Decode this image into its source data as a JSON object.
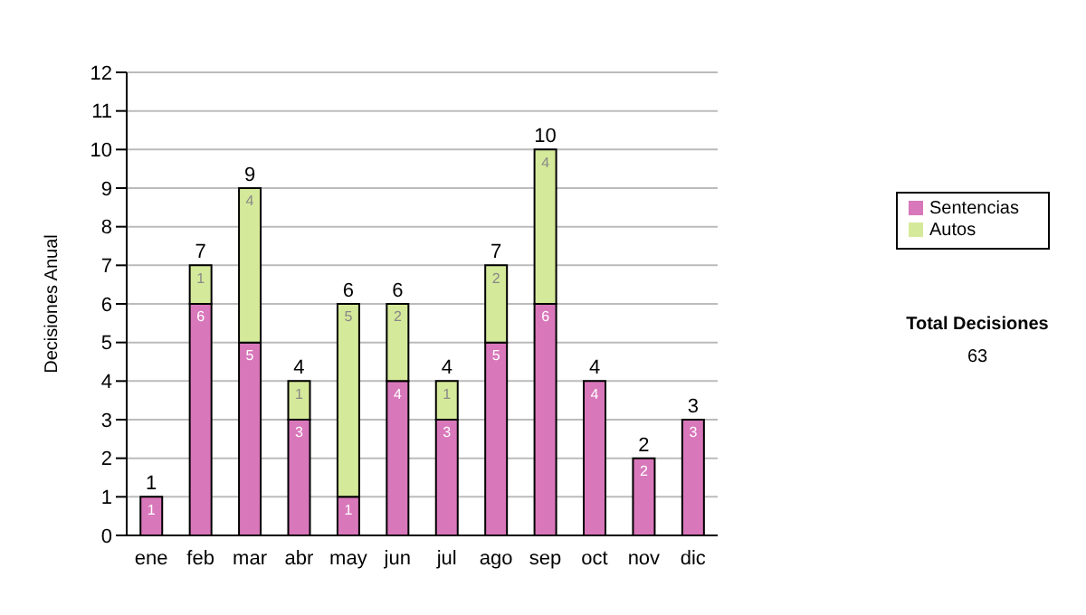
{
  "chart_data": {
    "type": "bar",
    "stacked": true,
    "ylabel": "Decisiones Anual",
    "categories": [
      "ene",
      "feb",
      "mar",
      "abr",
      "may",
      "jun",
      "jul",
      "ago",
      "sep",
      "oct",
      "nov",
      "dic"
    ],
    "series": [
      {
        "name": "Sentencias",
        "color": "#d977bb",
        "values": [
          1,
          6,
          5,
          3,
          1,
          4,
          3,
          5,
          6,
          4,
          2,
          3
        ]
      },
      {
        "name": "Autos",
        "color": "#d5e99a",
        "values": [
          null,
          1,
          4,
          1,
          5,
          2,
          1,
          2,
          4,
          null,
          null,
          null
        ]
      }
    ],
    "totals": [
      "1",
      "7",
      "9",
      "4",
      "6",
      "6",
      "4",
      "7",
      "10",
      "4",
      "2",
      "3"
    ],
    "data_labels": true,
    "ylim": [
      0,
      12
    ],
    "yticks": [
      0,
      1,
      2,
      3,
      4,
      5,
      6,
      7,
      8,
      9,
      10,
      11,
      12
    ],
    "grid": "y",
    "legend": "right",
    "annotations": [
      "Total Decisiones",
      "63"
    ]
  }
}
